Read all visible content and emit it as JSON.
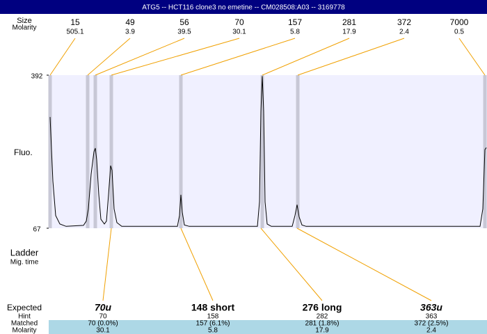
{
  "header": {
    "title": "ATG5 -- HCT116 clone3 no emetine -- CM028508:A03 -- 3169778"
  },
  "top": {
    "row_labels": [
      "Size",
      "Molarity"
    ],
    "peaks": [
      {
        "size": "15",
        "molarity": "505.1"
      },
      {
        "size": "49",
        "molarity": "3.9"
      },
      {
        "size": "56",
        "molarity": "39.5"
      },
      {
        "size": "70",
        "molarity": "30.1"
      },
      {
        "size": "157",
        "molarity": "5.8"
      },
      {
        "size": "281",
        "molarity": "17.9"
      },
      {
        "size": "372",
        "molarity": "2.4"
      },
      {
        "size": "7000",
        "molarity": "0.5"
      }
    ]
  },
  "chart_data": {
    "type": "line",
    "y_label": "Fluo.",
    "ylim": [
      67,
      392
    ],
    "yticks": [
      392,
      67
    ],
    "xlim": [
      0,
      630
    ],
    "series": [
      {
        "color": "#000000",
        "x": [
          2,
          6,
          10,
          16,
          25,
          50,
          54,
          57,
          61,
          65,
          67,
          69,
          72,
          75,
          80,
          83,
          86,
          89,
          91,
          94,
          98,
          105,
          185,
          188,
          190,
          192,
          195,
          202,
          300,
          303,
          305,
          307,
          309,
          311,
          314,
          320,
          350,
          354,
          357,
          360,
          364,
          370,
          620,
          624,
          627,
          629
        ],
        "values": [
          303,
          167,
          94,
          76,
          71,
          73,
          82,
          108,
          182,
          229,
          237,
          212,
          138,
          86,
          76,
          82,
          138,
          200,
          190,
          108,
          79,
          71,
          71,
          94,
          138,
          101,
          74,
          71,
          71,
          123,
          315,
          390,
          315,
          123,
          76,
          71,
          71,
          94,
          117,
          91,
          74,
          71,
          71,
          108,
          234,
          238
        ]
      }
    ]
  },
  "ladder": {
    "label": "Ladder",
    "sublabel": "Mig. time"
  },
  "expected": {
    "row_labels": [
      "Expected",
      "Hint",
      "Matched",
      "Molarity"
    ],
    "columns": [
      {
        "expected": "70u",
        "hint": "70",
        "matched": "70 (0.0%)",
        "molarity": "30.1"
      },
      {
        "expected": "148 short",
        "hint": "158",
        "matched": "157 (6.1%)",
        "molarity": "5.8"
      },
      {
        "expected": "276 long",
        "hint": "282",
        "matched": "281 (1.8%)",
        "molarity": "17.9"
      },
      {
        "expected": "363u",
        "hint": "363",
        "matched": "372 (2.5%)",
        "molarity": "2.4"
      }
    ]
  }
}
